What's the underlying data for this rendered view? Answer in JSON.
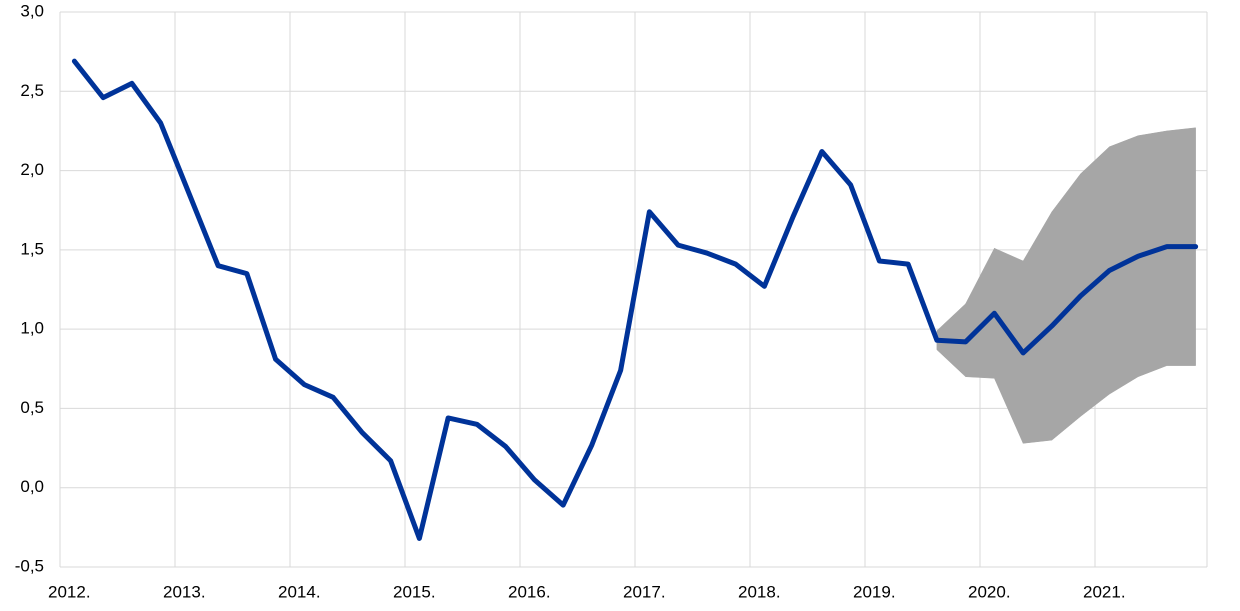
{
  "chart_data": {
    "type": "line",
    "x": [
      2012.125,
      2012.375,
      2012.625,
      2012.875,
      2013.125,
      2013.375,
      2013.625,
      2013.875,
      2014.125,
      2014.375,
      2014.625,
      2014.875,
      2015.125,
      2015.375,
      2015.625,
      2015.875,
      2016.125,
      2016.375,
      2016.625,
      2016.875,
      2017.125,
      2017.375,
      2017.625,
      2017.875,
      2018.125,
      2018.375,
      2018.625,
      2018.875,
      2019.125,
      2019.375,
      2019.625,
      2019.875,
      2020.125,
      2020.375,
      2020.625,
      2020.875,
      2021.125,
      2021.375,
      2021.625,
      2021.875
    ],
    "series": [
      {
        "color": "#003399",
        "values": [
          2.69,
          2.46,
          2.55,
          2.3,
          1.85,
          1.4,
          1.35,
          0.81,
          0.65,
          0.57,
          0.35,
          0.17,
          -0.32,
          0.44,
          0.4,
          0.26,
          0.05,
          -0.11,
          0.27,
          0.74,
          1.74,
          1.53,
          1.48,
          1.41,
          1.27,
          1.71,
          2.12,
          1.91,
          1.43,
          1.41,
          0.93,
          0.92,
          1.1,
          0.85,
          1.02,
          1.21,
          1.37,
          1.46,
          1.52,
          1.52
        ]
      }
    ],
    "band": {
      "color": "#a6a6a6",
      "upper": [
        null,
        null,
        null,
        null,
        null,
        null,
        null,
        null,
        null,
        null,
        null,
        null,
        null,
        null,
        null,
        null,
        null,
        null,
        null,
        null,
        null,
        null,
        null,
        null,
        null,
        null,
        null,
        null,
        null,
        null,
        0.99,
        1.16,
        1.51,
        1.43,
        1.74,
        1.98,
        2.15,
        2.22,
        2.25,
        2.27
      ],
      "lower": [
        null,
        null,
        null,
        null,
        null,
        null,
        null,
        null,
        null,
        null,
        null,
        null,
        null,
        null,
        null,
        null,
        null,
        null,
        null,
        null,
        null,
        null,
        null,
        null,
        null,
        null,
        null,
        null,
        null,
        null,
        0.87,
        0.7,
        0.69,
        0.28,
        0.3,
        0.45,
        0.59,
        0.7,
        0.77,
        0.77
      ]
    },
    "xlim": [
      2012,
      2022
    ],
    "xticks": [
      {
        "value": 2012,
        "label": "2012."
      },
      {
        "value": 2013,
        "label": "2013."
      },
      {
        "value": 2014,
        "label": "2014."
      },
      {
        "value": 2015,
        "label": "2015."
      },
      {
        "value": 2016,
        "label": "2016."
      },
      {
        "value": 2017,
        "label": "2017."
      },
      {
        "value": 2018,
        "label": "2018."
      },
      {
        "value": 2019,
        "label": "2019."
      },
      {
        "value": 2020,
        "label": "2020."
      },
      {
        "value": 2021,
        "label": "2021."
      }
    ],
    "ylim": [
      -0.5,
      3
    ],
    "yticks": [
      {
        "value": -0.5,
        "label": "-0,5"
      },
      {
        "value": 0,
        "label": "0,0"
      },
      {
        "value": 0.5,
        "label": "0,5"
      },
      {
        "value": 1,
        "label": "1,0"
      },
      {
        "value": 1.5,
        "label": "1,5"
      },
      {
        "value": 2,
        "label": "2,0"
      },
      {
        "value": 2.5,
        "label": "2,5"
      },
      {
        "value": 3,
        "label": "3,0"
      }
    ],
    "grid": true
  }
}
